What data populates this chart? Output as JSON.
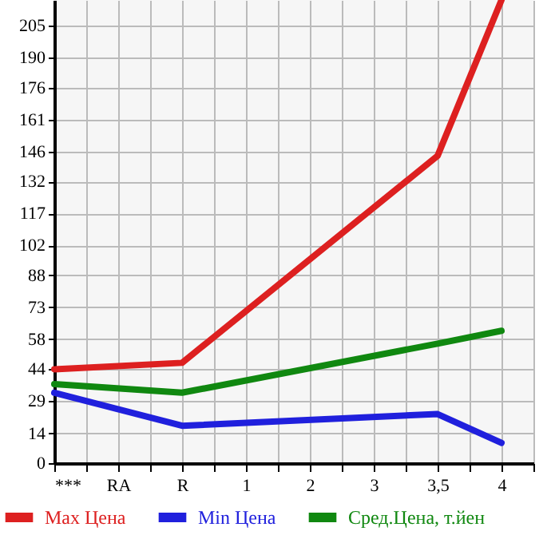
{
  "chart_data": {
    "type": "line",
    "categories": [
      "***",
      "RA",
      "R",
      "1",
      "2",
      "3",
      "3,5",
      "4"
    ],
    "series": [
      {
        "name": "Max Цена",
        "color": "#dd2020",
        "values": [
          44,
          null,
          47,
          null,
          null,
          null,
          144,
          217
        ]
      },
      {
        "name": "Min Цена",
        "color": "#2020dd",
        "values": [
          33,
          null,
          17.5,
          null,
          null,
          null,
          23,
          9.5
        ]
      },
      {
        "name": "Сред.Цена, т.йен",
        "color": "#108810",
        "values": [
          37,
          null,
          33,
          null,
          null,
          null,
          56,
          62
        ]
      }
    ],
    "ylim": [
      0,
      217
    ],
    "yticks": [
      0,
      14,
      29,
      44,
      58,
      73,
      88,
      102,
      117,
      132,
      146,
      161,
      176,
      190,
      205
    ],
    "grid": true,
    "legend": "bottom",
    "marker": "none",
    "line_style": "solid"
  }
}
